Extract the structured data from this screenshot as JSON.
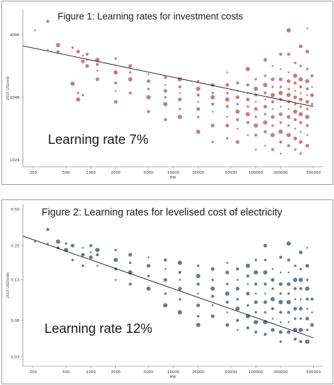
{
  "chart_data": [
    {
      "type": "scatter",
      "title": "Figure 1: Learning rates for investment costs",
      "annotation": "Learning rate 7%",
      "xlabel": "MW",
      "ylabel": "2015 USD/kW",
      "xscale": "log",
      "yscale": "log",
      "xlim": [
        150,
        650000
      ],
      "ylim": [
        950,
        5400
      ],
      "x_ticks": [
        200,
        500,
        1000,
        2000,
        5000,
        10000,
        20000,
        50000,
        100000,
        200000,
        500000
      ],
      "x_tick_labels": [
        "200",
        "500",
        "1000",
        "2000",
        "5000",
        "10000",
        "20000",
        "50000",
        "100000",
        "200000",
        "500000"
      ],
      "y_ticks": [
        1024,
        2048,
        4096
      ],
      "y_tick_labels": [
        "1024",
        "2048",
        "4096"
      ],
      "trendline": {
        "x": [
          150,
          500000
        ],
        "y": [
          3620,
          1850
        ]
      },
      "marker_color": "#b5505a",
      "grid": false,
      "columns": [
        {
          "x": 210,
          "ys": [
            4300
          ]
        },
        {
          "x": 300,
          "ys": [
            4750,
            3460
          ]
        },
        {
          "x": 400,
          "ys": [
            3650,
            3400
          ]
        },
        {
          "x": 600,
          "ys": [
            3550,
            2380
          ]
        },
        {
          "x": 700,
          "ys": [
            3400,
            2150,
            2000
          ]
        },
        {
          "x": 800,
          "ys": [
            3250,
            3050,
            2100
          ]
        },
        {
          "x": 900,
          "ys": [
            3300,
            3100,
            2900
          ]
        },
        {
          "x": 1200,
          "ys": [
            3100,
            2950,
            2750,
            2500
          ]
        },
        {
          "x": 2000,
          "ys": [
            3150,
            2700,
            2400,
            2200,
            1950
          ]
        },
        {
          "x": 3000,
          "ys": [
            2900,
            2700,
            2500,
            2150
          ]
        },
        {
          "x": 5000,
          "ys": [
            2650,
            2450,
            2250,
            2050,
            1750
          ]
        },
        {
          "x": 8000,
          "ys": [
            2550,
            2350,
            2200,
            2050,
            1900,
            1600
          ]
        },
        {
          "x": 12000,
          "ys": [
            2500,
            2300,
            2150,
            2000,
            1800,
            1650
          ]
        },
        {
          "x": 20000,
          "ys": [
            2450,
            2250,
            2100,
            1950,
            1800,
            1650,
            1400
          ]
        },
        {
          "x": 30000,
          "ys": [
            2350,
            2150,
            2050,
            1900,
            1750,
            1500,
            1250
          ]
        },
        {
          "x": 45000,
          "ys": [
            2700,
            2350,
            2150,
            2000,
            1850,
            1650,
            1500,
            1300
          ]
        },
        {
          "x": 60000,
          "ys": [
            2400,
            2200,
            2050,
            1900,
            1750,
            1600,
            1450,
            1250
          ]
        },
        {
          "x": 80000,
          "ys": [
            2800,
            2350,
            2150,
            2000,
            1850,
            1700,
            1550,
            1350
          ]
        },
        {
          "x": 100000,
          "ys": [
            2500,
            2250,
            2100,
            1950,
            1800,
            1650,
            1500,
            1350,
            1150
          ]
        },
        {
          "x": 130000,
          "ys": [
            3100,
            2600,
            2350,
            2150,
            2000,
            1850,
            1700,
            1550,
            1400,
            1200
          ]
        },
        {
          "x": 160000,
          "ys": [
            2900,
            2500,
            2300,
            2100,
            1950,
            1800,
            1650,
            1500,
            1350,
            1150
          ]
        },
        {
          "x": 200000,
          "ys": [
            3300,
            2800,
            2500,
            2300,
            2150,
            2000,
            1850,
            1700,
            1550,
            1400,
            1250,
            1100
          ]
        },
        {
          "x": 250000,
          "ys": [
            4300,
            3300,
            2700,
            2450,
            2250,
            2100,
            1950,
            1800,
            1650,
            1500,
            1350,
            1200
          ]
        },
        {
          "x": 300000,
          "ys": [
            3000,
            2600,
            2400,
            2200,
            2050,
            1900,
            1750,
            1600,
            1450,
            1300,
            1150
          ]
        },
        {
          "x": 350000,
          "ys": [
            3600,
            2900,
            2500,
            2300,
            2150,
            2000,
            1850,
            1700,
            1550,
            1400,
            1250,
            1100
          ]
        },
        {
          "x": 420000,
          "ys": [
            4400,
            3400,
            2800,
            2450,
            2250,
            2100,
            1950,
            1800,
            1650,
            1500,
            1350,
            1200
          ]
        },
        {
          "x": 480000,
          "ys": [
            2600,
            2300,
            2100,
            1900
          ]
        }
      ]
    },
    {
      "type": "scatter",
      "title": "Figure 2: Learning rates for levelised cost of electricity",
      "annotation": "Learning rate 12%",
      "xlabel": "MW",
      "ylabel": "2015 USD/kWh",
      "xscale": "log",
      "yscale": "log",
      "xlim": [
        150,
        650000
      ],
      "ylim": [
        0.025,
        0.55
      ],
      "x_ticks": [
        200,
        500,
        1000,
        2000,
        5000,
        10000,
        20000,
        50000,
        100000,
        200000,
        500000
      ],
      "x_tick_labels": [
        "200",
        "500",
        "1000",
        "2000",
        "5000",
        "10000",
        "20000",
        "50000",
        "100000",
        "200000",
        "500000"
      ],
      "y_ticks": [
        0.03,
        0.06,
        0.13,
        0.25,
        0.5
      ],
      "y_tick_labels": [
        "0.03",
        "0.06",
        "0.13",
        "0.25",
        "0.50"
      ],
      "trendline": {
        "x": [
          150,
          500000
        ],
        "y": [
          0.3,
          0.043
        ]
      },
      "marker_color": "#3c4a66",
      "grid": false,
      "columns": [
        {
          "x": 210,
          "ys": [
            0.27
          ]
        },
        {
          "x": 300,
          "ys": [
            0.34,
            0.26
          ]
        },
        {
          "x": 400,
          "ys": [
            0.27,
            0.24
          ]
        },
        {
          "x": 500,
          "ys": [
            0.26,
            0.23
          ]
        },
        {
          "x": 600,
          "ys": [
            0.25,
            0.19
          ]
        },
        {
          "x": 800,
          "ys": [
            0.24,
            0.21,
            0.17
          ]
        },
        {
          "x": 1000,
          "ys": [
            0.25,
            0.22,
            0.2
          ]
        },
        {
          "x": 1200,
          "ys": [
            0.23,
            0.21,
            0.17
          ]
        },
        {
          "x": 2000,
          "ys": [
            0.23,
            0.19,
            0.16,
            0.13
          ]
        },
        {
          "x": 3000,
          "ys": [
            0.21,
            0.18,
            0.15,
            0.12
          ]
        },
        {
          "x": 5000,
          "ys": [
            0.2,
            0.17,
            0.14,
            0.11
          ]
        },
        {
          "x": 8000,
          "ys": [
            0.19,
            0.16,
            0.13,
            0.1,
            0.08
          ]
        },
        {
          "x": 12000,
          "ys": [
            0.18,
            0.15,
            0.13,
            0.11,
            0.09,
            0.07
          ]
        },
        {
          "x": 20000,
          "ys": [
            0.17,
            0.14,
            0.12,
            0.1,
            0.08,
            0.065,
            0.055
          ]
        },
        {
          "x": 30000,
          "ys": [
            0.16,
            0.13,
            0.11,
            0.095,
            0.08,
            0.065
          ]
        },
        {
          "x": 45000,
          "ys": [
            0.18,
            0.15,
            0.12,
            0.1,
            0.085,
            0.07,
            0.055
          ]
        },
        {
          "x": 60000,
          "ys": [
            0.16,
            0.13,
            0.11,
            0.09,
            0.075,
            0.06,
            0.05
          ]
        },
        {
          "x": 80000,
          "ys": [
            0.17,
            0.14,
            0.12,
            0.1,
            0.08,
            0.065,
            0.052
          ]
        },
        {
          "x": 100000,
          "ys": [
            0.19,
            0.15,
            0.12,
            0.1,
            0.085,
            0.07,
            0.058,
            0.048
          ]
        },
        {
          "x": 130000,
          "ys": [
            0.25,
            0.19,
            0.15,
            0.12,
            0.1,
            0.085,
            0.07,
            0.058,
            0.046
          ]
        },
        {
          "x": 160000,
          "ys": [
            0.16,
            0.13,
            0.11,
            0.09,
            0.075,
            0.062,
            0.05
          ]
        },
        {
          "x": 200000,
          "ys": [
            0.2,
            0.15,
            0.12,
            0.1,
            0.085,
            0.07,
            0.058,
            0.048,
            0.04
          ]
        },
        {
          "x": 250000,
          "ys": [
            0.26,
            0.19,
            0.15,
            0.12,
            0.1,
            0.085,
            0.07,
            0.058,
            0.048
          ]
        },
        {
          "x": 300000,
          "ys": [
            0.17,
            0.13,
            0.11,
            0.09,
            0.075,
            0.062,
            0.05,
            0.042
          ]
        },
        {
          "x": 350000,
          "ys": [
            0.22,
            0.16,
            0.13,
            0.11,
            0.09,
            0.075,
            0.062,
            0.05,
            0.04
          ]
        },
        {
          "x": 420000,
          "ys": [
            0.24,
            0.17,
            0.13,
            0.11,
            0.09,
            0.075,
            0.062,
            0.05,
            0.04
          ]
        },
        {
          "x": 480000,
          "ys": [
            0.09,
            0.07,
            0.055
          ]
        }
      ]
    }
  ]
}
